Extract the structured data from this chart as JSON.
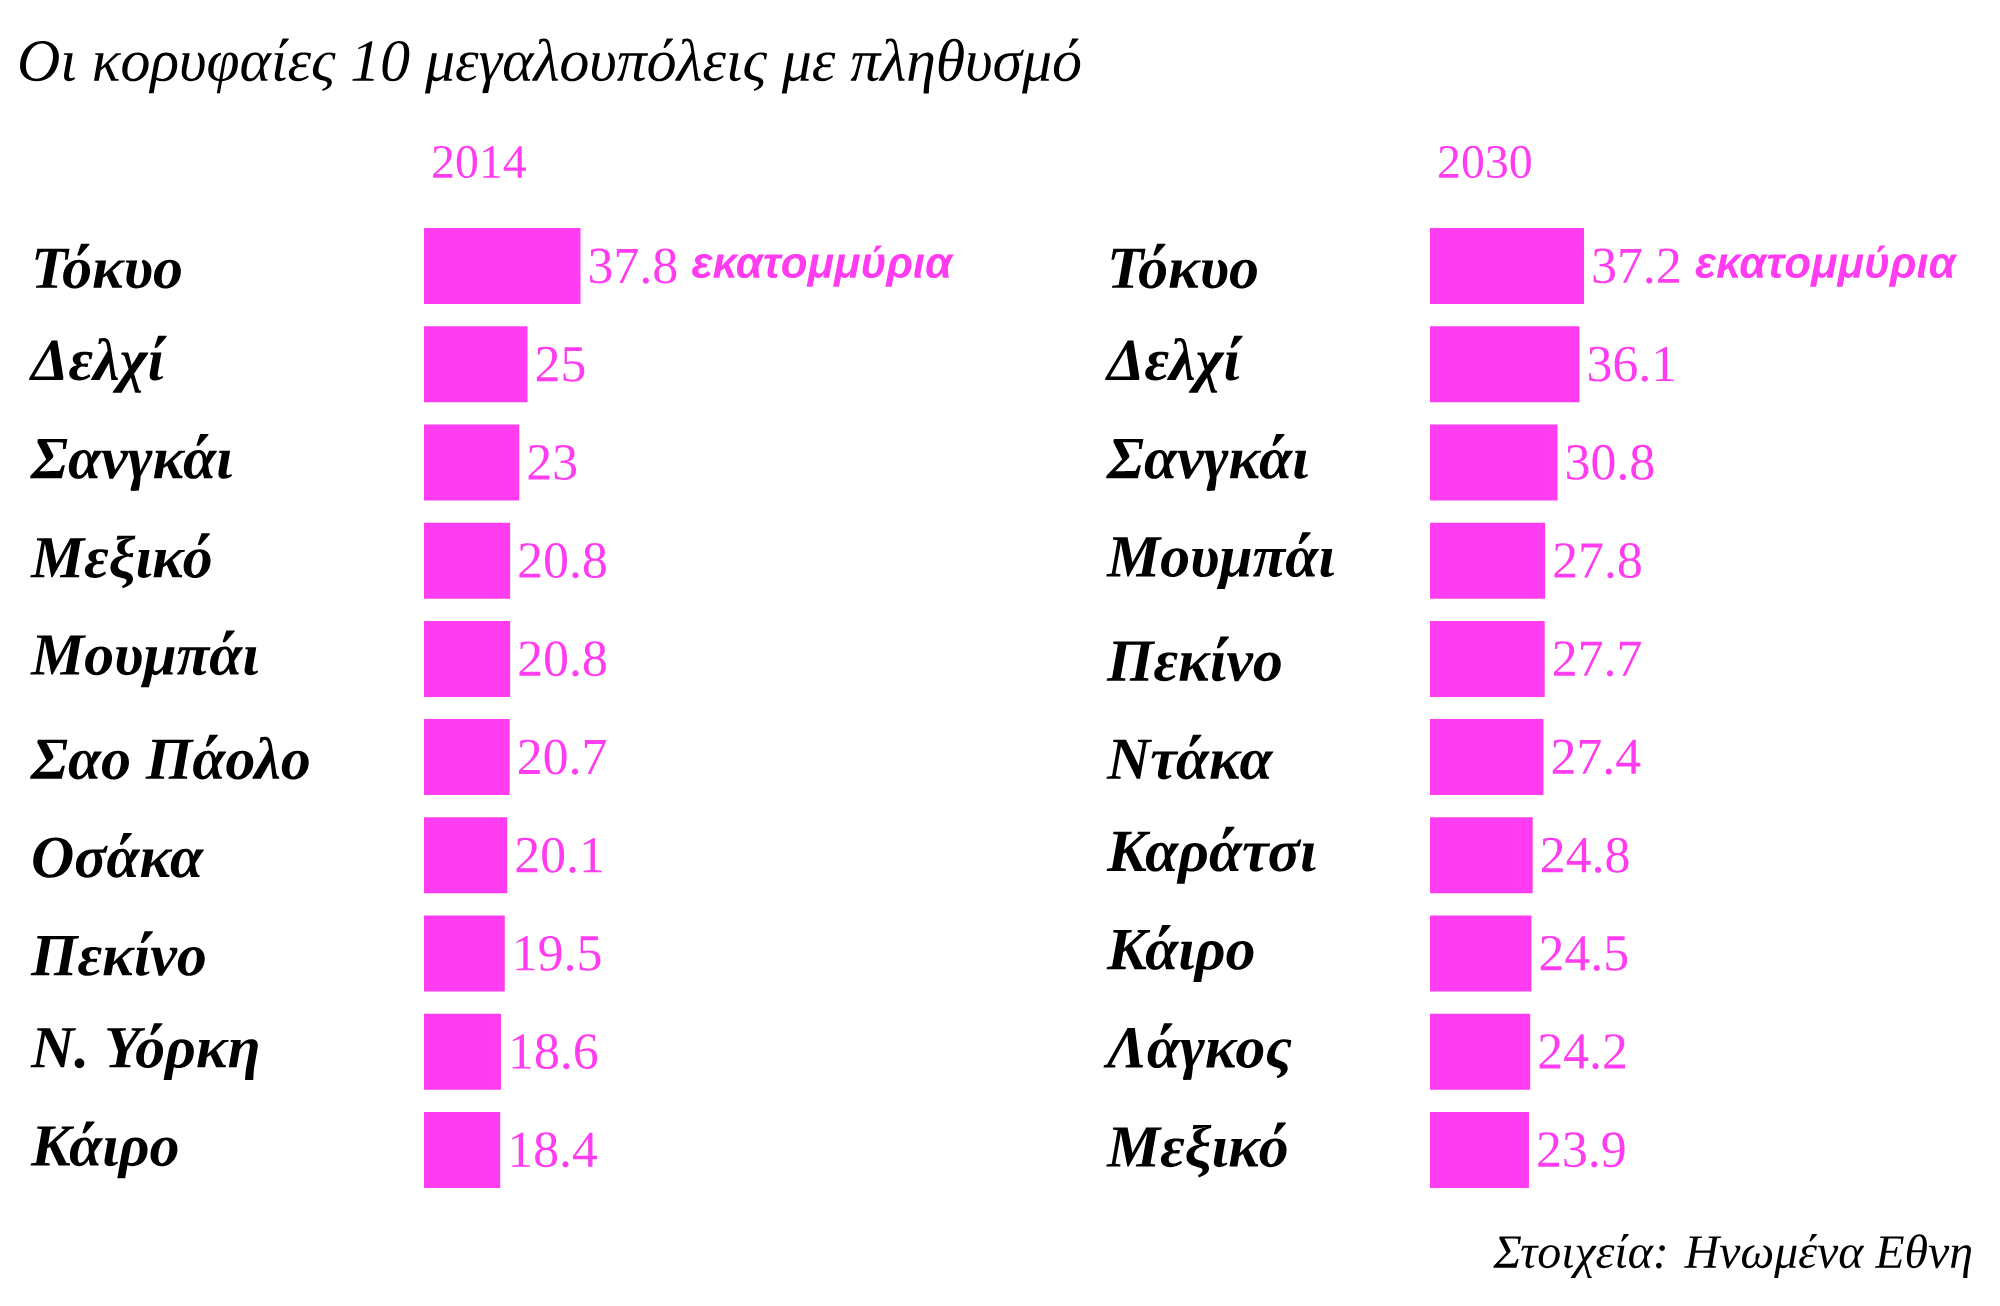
{
  "chart_data": [
    {
      "type": "bar",
      "orientation": "horizontal",
      "title": "Οι κορυφαίες 10 μεγαλουπόλεις με πληθυσμό",
      "subtitle": "2014",
      "categories": [
        "Τόκυο",
        "Δελχί",
        "Σανγκάι",
        "Μεξικό",
        "Μουμπάι",
        "Σαο Πάολο",
        "Οσάκα",
        "Πεκίνο",
        "Ν. Υόρκη",
        "Κάιρο"
      ],
      "values": [
        37.8,
        25,
        23,
        20.8,
        20.8,
        20.7,
        20.1,
        19.5,
        18.6,
        18.4
      ],
      "color": "#ff3cf0",
      "data_labels": true,
      "annotations": [
        "εκατομμύρια"
      ]
    },
    {
      "type": "bar",
      "orientation": "horizontal",
      "subtitle": "2030",
      "categories": [
        "Τόκυο",
        "Δελχί",
        "Σανγκάι",
        "Μουμπάι",
        "Πεκίνο",
        "Ντάκα",
        "Καράτσι",
        "Κάιρο",
        "Λάγκος",
        "Μεξικό"
      ],
      "values": [
        37.2,
        36.1,
        30.8,
        27.8,
        27.7,
        27.4,
        24.8,
        24.5,
        24.2,
        23.9
      ],
      "color": "#ff3cf0",
      "data_labels": true,
      "annotations": [
        "εκατομμύρια",
        "Στοιχεία: Ηνωμένα Εθνη"
      ]
    }
  ]
}
